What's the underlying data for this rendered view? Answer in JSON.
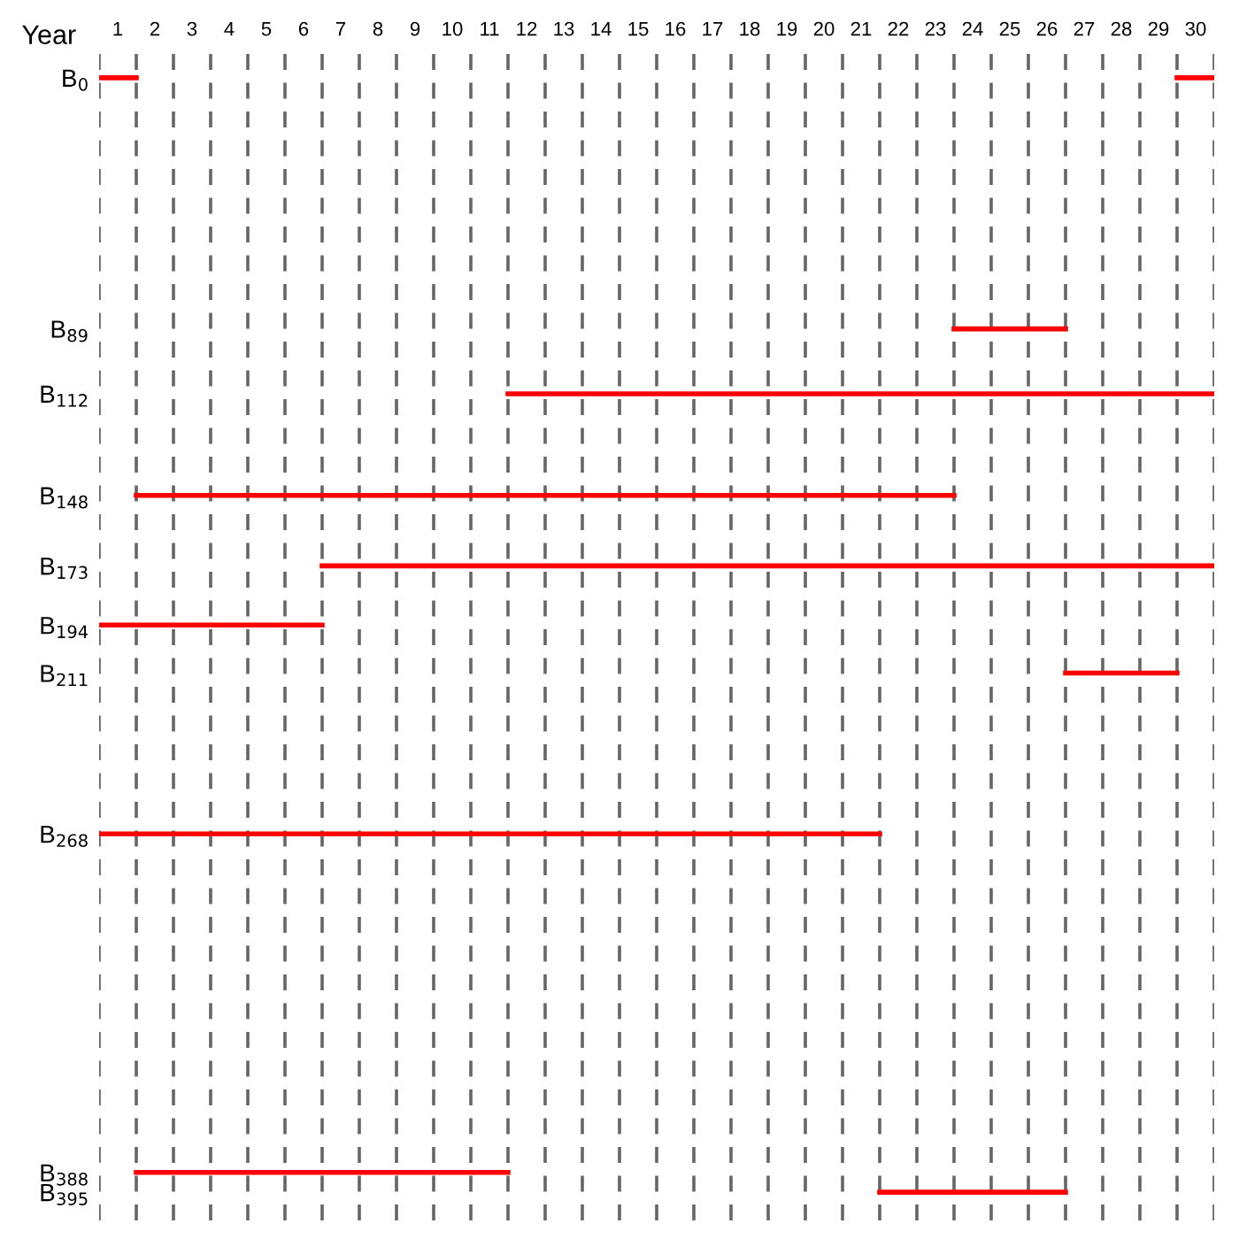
{
  "chart_data": {
    "type": "line",
    "xlabel": "Year",
    "xlim": [
      0,
      30
    ],
    "xticks": [
      {
        "value": 0.5,
        "label": "1"
      },
      {
        "value": 1.5,
        "label": "2"
      },
      {
        "value": 2.5,
        "label": "3"
      },
      {
        "value": 3.5,
        "label": "4"
      },
      {
        "value": 4.5,
        "label": "5"
      },
      {
        "value": 5.5,
        "label": "6"
      },
      {
        "value": 6.5,
        "label": "7"
      },
      {
        "value": 7.5,
        "label": "8"
      },
      {
        "value": 8.5,
        "label": "9"
      },
      {
        "value": 9.5,
        "label": "10"
      },
      {
        "value": 10.5,
        "label": "11"
      },
      {
        "value": 11.5,
        "label": "12"
      },
      {
        "value": 12.5,
        "label": "13"
      },
      {
        "value": 13.5,
        "label": "14"
      },
      {
        "value": 14.5,
        "label": "15"
      },
      {
        "value": 15.5,
        "label": "16"
      },
      {
        "value": 16.5,
        "label": "17"
      },
      {
        "value": 17.5,
        "label": "18"
      },
      {
        "value": 18.5,
        "label": "19"
      },
      {
        "value": 19.5,
        "label": "20"
      },
      {
        "value": 20.5,
        "label": "21"
      },
      {
        "value": 21.5,
        "label": "22"
      },
      {
        "value": 22.5,
        "label": "23"
      },
      {
        "value": 23.5,
        "label": "24"
      },
      {
        "value": 24.5,
        "label": "25"
      },
      {
        "value": 25.5,
        "label": "26"
      },
      {
        "value": 26.5,
        "label": "27"
      },
      {
        "value": 27.5,
        "label": "28"
      },
      {
        "value": 28.5,
        "label": "29"
      },
      {
        "value": 29.5,
        "label": "30"
      }
    ],
    "ylim": [
      405,
      -10
    ],
    "yticks": [
      {
        "value": 0,
        "label": "B$_{0}$"
      },
      {
        "value": 89,
        "label": "B$_{89}$"
      },
      {
        "value": 112,
        "label": "B$_{112}$"
      },
      {
        "value": 148,
        "label": "B$_{148}$"
      },
      {
        "value": 173,
        "label": "B$_{173}$"
      },
      {
        "value": 194,
        "label": "B$_{194}$"
      },
      {
        "value": 211,
        "label": "B$_{211}$"
      },
      {
        "value": 268,
        "label": "B$_{268}$"
      },
      {
        "value": 388,
        "label": "B$_{388}$"
      },
      {
        "value": 395,
        "label": "B$_{395}$"
      }
    ],
    "ref_lines": [
      {
        "axis": "x",
        "value": 0,
        "color": "#666666",
        "line_style": "dashed"
      },
      {
        "axis": "x",
        "value": 1,
        "color": "#666666",
        "line_style": "dashed"
      },
      {
        "axis": "x",
        "value": 2,
        "color": "#666666",
        "line_style": "dashed"
      },
      {
        "axis": "x",
        "value": 3,
        "color": "#666666",
        "line_style": "dashed"
      },
      {
        "axis": "x",
        "value": 4,
        "color": "#666666",
        "line_style": "dashed"
      },
      {
        "axis": "x",
        "value": 5,
        "color": "#666666",
        "line_style": "dashed"
      },
      {
        "axis": "x",
        "value": 6,
        "color": "#666666",
        "line_style": "dashed"
      },
      {
        "axis": "x",
        "value": 7,
        "color": "#666666",
        "line_style": "dashed"
      },
      {
        "axis": "x",
        "value": 8,
        "color": "#666666",
        "line_style": "dashed"
      },
      {
        "axis": "x",
        "value": 9,
        "color": "#666666",
        "line_style": "dashed"
      },
      {
        "axis": "x",
        "value": 10,
        "color": "#666666",
        "line_style": "dashed"
      },
      {
        "axis": "x",
        "value": 11,
        "color": "#666666",
        "line_style": "dashed"
      },
      {
        "axis": "x",
        "value": 12,
        "color": "#666666",
        "line_style": "dashed"
      },
      {
        "axis": "x",
        "value": 13,
        "color": "#666666",
        "line_style": "dashed"
      },
      {
        "axis": "x",
        "value": 14,
        "color": "#666666",
        "line_style": "dashed"
      },
      {
        "axis": "x",
        "value": 15,
        "color": "#666666",
        "line_style": "dashed"
      },
      {
        "axis": "x",
        "value": 16,
        "color": "#666666",
        "line_style": "dashed"
      },
      {
        "axis": "x",
        "value": 17,
        "color": "#666666",
        "line_style": "dashed"
      },
      {
        "axis": "x",
        "value": 18,
        "color": "#666666",
        "line_style": "dashed"
      },
      {
        "axis": "x",
        "value": 19,
        "color": "#666666",
        "line_style": "dashed"
      },
      {
        "axis": "x",
        "value": 20,
        "color": "#666666",
        "line_style": "dashed"
      },
      {
        "axis": "x",
        "value": 21,
        "color": "#666666",
        "line_style": "dashed"
      },
      {
        "axis": "x",
        "value": 22,
        "color": "#666666",
        "line_style": "dashed"
      },
      {
        "axis": "x",
        "value": 23,
        "color": "#666666",
        "line_style": "dashed"
      },
      {
        "axis": "x",
        "value": 24,
        "color": "#666666",
        "line_style": "dashed"
      },
      {
        "axis": "x",
        "value": 25,
        "color": "#666666",
        "line_style": "dashed"
      },
      {
        "axis": "x",
        "value": 26,
        "color": "#666666",
        "line_style": "dashed"
      },
      {
        "axis": "x",
        "value": 27,
        "color": "#666666",
        "line_style": "dashed"
      },
      {
        "axis": "x",
        "value": 28,
        "color": "#666666",
        "line_style": "dashed"
      },
      {
        "axis": "x",
        "value": 29,
        "color": "#666666",
        "line_style": "dashed"
      },
      {
        "axis": "x",
        "value": 30,
        "color": "#666666",
        "line_style": "dashed"
      }
    ],
    "marker": "none",
    "line_style": "solid",
    "grid": false,
    "legend": false,
    "series": [
      {
        "color": "#ff0000",
        "x": [
          0,
          1
        ],
        "values": [
          0,
          0
        ]
      },
      {
        "color": "#ff0000",
        "x": [
          29,
          30
        ],
        "values": [
          0,
          0
        ]
      },
      {
        "color": "#ff0000",
        "x": [
          23,
          26
        ],
        "values": [
          89,
          89
        ]
      },
      {
        "color": "#ff0000",
        "x": [
          11,
          30
        ],
        "values": [
          112,
          112
        ]
      },
      {
        "color": "#ff0000",
        "x": [
          1,
          23
        ],
        "values": [
          148,
          148
        ]
      },
      {
        "color": "#ff0000",
        "x": [
          6,
          30
        ],
        "values": [
          173,
          173
        ]
      },
      {
        "color": "#ff0000",
        "x": [
          0,
          6
        ],
        "values": [
          194,
          194
        ]
      },
      {
        "color": "#ff0000",
        "x": [
          26,
          29
        ],
        "values": [
          211,
          211
        ]
      },
      {
        "color": "#ff0000",
        "x": [
          0,
          21
        ],
        "values": [
          268,
          268
        ]
      },
      {
        "color": "#ff0000",
        "x": [
          1,
          11
        ],
        "values": [
          388,
          388
        ]
      },
      {
        "color": "#ff0000",
        "x": [
          21,
          26
        ],
        "values": [
          395,
          395
        ]
      }
    ]
  }
}
